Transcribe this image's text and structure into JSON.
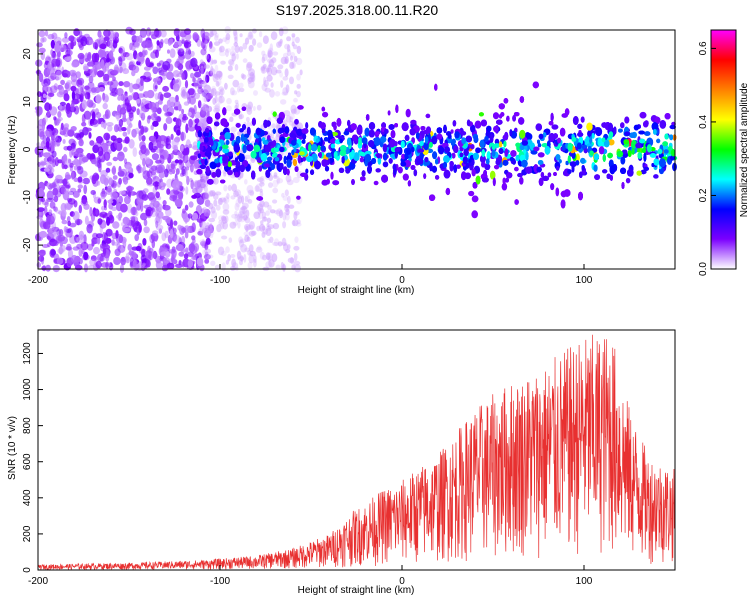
{
  "figure_title": "S197.2025.318.00.11.R20",
  "colors": {
    "snr_line": "#e83030",
    "frame": "#000000",
    "background": "#ffffff"
  },
  "chart_data": [
    {
      "type": "heatmap",
      "title": "S197.2025.318.00.11.R20",
      "xlabel": "Height of straight line (km)",
      "ylabel": "Frequency (Hz)",
      "xlim": [
        -200,
        150
      ],
      "ylim": [
        -25,
        25
      ],
      "xticks": [
        -200,
        -100,
        0,
        100
      ],
      "yticks": [
        -20,
        -10,
        0,
        10,
        20
      ],
      "colorbar": {
        "label": "Normalized spectral amplitude",
        "range": [
          0.0,
          0.65
        ],
        "ticks": [
          "0.0",
          "0.2",
          "0.4",
          "0.6"
        ],
        "colormap": [
          "#ffffff",
          "#7b00ff",
          "#0000ff",
          "#00ffff",
          "#00ff00",
          "#ffff00",
          "#ff8000",
          "#ff0000",
          "#ff00ff"
        ]
      },
      "description_regions": [
        {
          "x_range": [
            -200,
            -110
          ],
          "f_range": [
            -25,
            25
          ],
          "amplitude": 0.05
        },
        {
          "x_range": [
            -110,
            150
          ],
          "f_range": [
            -6,
            6
          ],
          "amplitude": 0.25
        },
        {
          "x_range": [
            100,
            145
          ],
          "f_range": [
            -3,
            5
          ],
          "amplitude": 0.45
        }
      ]
    },
    {
      "type": "line",
      "xlabel": "Height of straight line (km)",
      "ylabel": "SNR (10 * v/v)",
      "xlim": [
        -200,
        150
      ],
      "ylim": [
        0,
        1330
      ],
      "xticks": [
        -200,
        -100,
        0,
        100
      ],
      "yticks": [
        0,
        200,
        400,
        600,
        800,
        1000,
        1200
      ],
      "series": [
        {
          "envelope_x": [
            -200,
            -150,
            -110,
            -80,
            -60,
            -40,
            -28,
            -10,
            0,
            20,
            40,
            60,
            80,
            100,
            115,
            125,
            135,
            150
          ],
          "envelope_y": [
            30,
            40,
            55,
            80,
            120,
            200,
            320,
            450,
            500,
            650,
            900,
            1050,
            1150,
            1300,
            1330,
            900,
            650,
            560
          ]
        }
      ]
    }
  ]
}
